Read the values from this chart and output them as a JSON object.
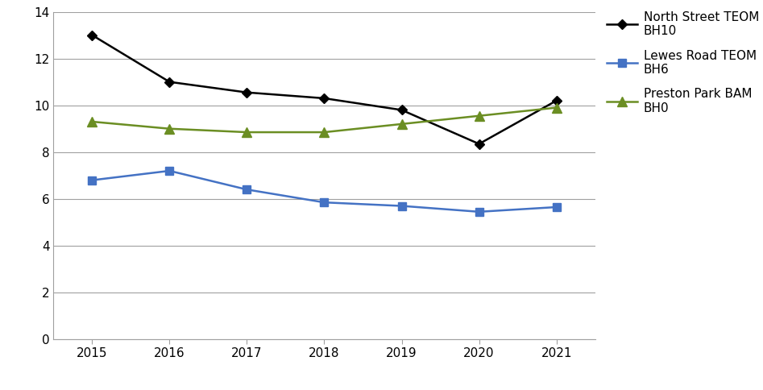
{
  "years": [
    2015,
    2016,
    2017,
    2018,
    2019,
    2020,
    2021
  ],
  "north_street": [
    13.0,
    11.0,
    10.55,
    10.3,
    9.8,
    8.35,
    10.2
  ],
  "lewes_road": [
    6.8,
    7.2,
    6.4,
    5.85,
    5.7,
    5.45,
    5.65
  ],
  "preston_park": [
    9.3,
    9.0,
    8.85,
    8.85,
    9.2,
    9.55,
    9.9
  ],
  "north_street_color": "#000000",
  "lewes_road_color": "#4472c4",
  "preston_park_color": "#6b8e23",
  "north_street_label": "North Street TEOM\nBH10",
  "lewes_road_label": "Lewes Road TEOM\nBH6",
  "preston_park_label": "Preston Park BAM\nBH0",
  "ylim": [
    0,
    14
  ],
  "yticks": [
    0,
    2,
    4,
    6,
    8,
    10,
    12,
    14
  ],
  "background_color": "#ffffff",
  "grid_color": "#a0a0a0",
  "spine_color": "#a0a0a0",
  "marker_north": "D",
  "marker_lewes": "s",
  "marker_preston": "^",
  "marker_size_north": 6,
  "marker_size_lewes": 7,
  "marker_size_preston": 8,
  "linewidth": 1.8,
  "tick_fontsize": 11,
  "legend_fontsize": 11
}
